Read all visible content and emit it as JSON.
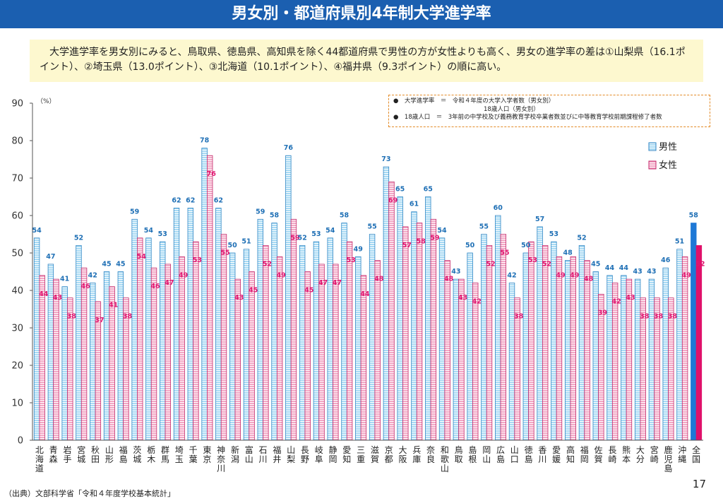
{
  "header": {
    "title": "男女別・都道府県別4年制大学進学率"
  },
  "summary": {
    "text": "大学進学率を男女別にみると、鳥取県、徳島県、高知県を除く44都道府県で男性の方が女性よりも高く、男女の進学率の差は①山梨県（16.1ポイント）、②埼玉県（13.0ポイント）、③北海道（10.1ポイント）、④福井県（9.3ポイント）の順に高い。"
  },
  "note": {
    "line1": "●　大学進学率　＝　令和４年度の大学入学者数（男女別）",
    "line2": "18歳人口（男女別）",
    "line3": "●　18歳人口　＝　3年前の中学校及び義務教育学校卒業者数並びに中等教育学校前期課程修了者数"
  },
  "footer": {
    "source": "（出典）文部科学省「令和４年度学校基本統計」",
    "page": "17"
  },
  "colors": {
    "male": "#9ed3f0",
    "male_stroke": "#2f86c4",
    "female": "#f1a9c6",
    "female_stroke": "#c42a6c",
    "national_male": "#1e78d6",
    "national_female": "#e0106a",
    "male_label": "#1e6fb5",
    "female_label": "#e0146f"
  },
  "chart_data": {
    "type": "bar",
    "ylabel": "（%）",
    "ylim": [
      0,
      90
    ],
    "yticks": [
      0,
      10,
      20,
      30,
      40,
      50,
      60,
      70,
      80,
      90
    ],
    "grid": false,
    "legend_position": "top-right",
    "categories": [
      "北海道",
      "青森",
      "岩手",
      "宮城",
      "秋田",
      "山形",
      "福島",
      "茨城",
      "栃木",
      "群馬",
      "埼玉",
      "千葉",
      "東京",
      "神奈川",
      "新潟",
      "富山",
      "石川",
      "福井",
      "山梨",
      "長野",
      "岐阜",
      "静岡",
      "愛知",
      "三重",
      "滋賀",
      "京都",
      "大阪",
      "兵庫",
      "奈良",
      "和歌山",
      "鳥取",
      "島根",
      "岡山",
      "広島",
      "山口",
      "徳島",
      "香川",
      "愛媛",
      "高知",
      "福岡",
      "佐賀",
      "長崎",
      "熊本",
      "大分",
      "宮崎",
      "鹿児島",
      "沖縄",
      "全国"
    ],
    "series": [
      {
        "name": "男性",
        "values": [
          54,
          47,
          41,
          52,
          42,
          45,
          45,
          59,
          54,
          53,
          62,
          62,
          78,
          62,
          50,
          51,
          59,
          58,
          76,
          52,
          53,
          54,
          58,
          49,
          55,
          73,
          65,
          61,
          65,
          54,
          43,
          50,
          55,
          60,
          42,
          50,
          57,
          53,
          48,
          52,
          45,
          44,
          44,
          43,
          43,
          46,
          51,
          58
        ]
      },
      {
        "name": "女性",
        "values": [
          44,
          43,
          38,
          46,
          37,
          41,
          38,
          54,
          46,
          47,
          49,
          53,
          76,
          55,
          43,
          45,
          52,
          49,
          59,
          45,
          47,
          47,
          53,
          44,
          48,
          69,
          57,
          58,
          59,
          48,
          43,
          42,
          52,
          55,
          38,
          53,
          52,
          49,
          49,
          48,
          39,
          42,
          43,
          38,
          38,
          38,
          49,
          52
        ]
      }
    ]
  }
}
